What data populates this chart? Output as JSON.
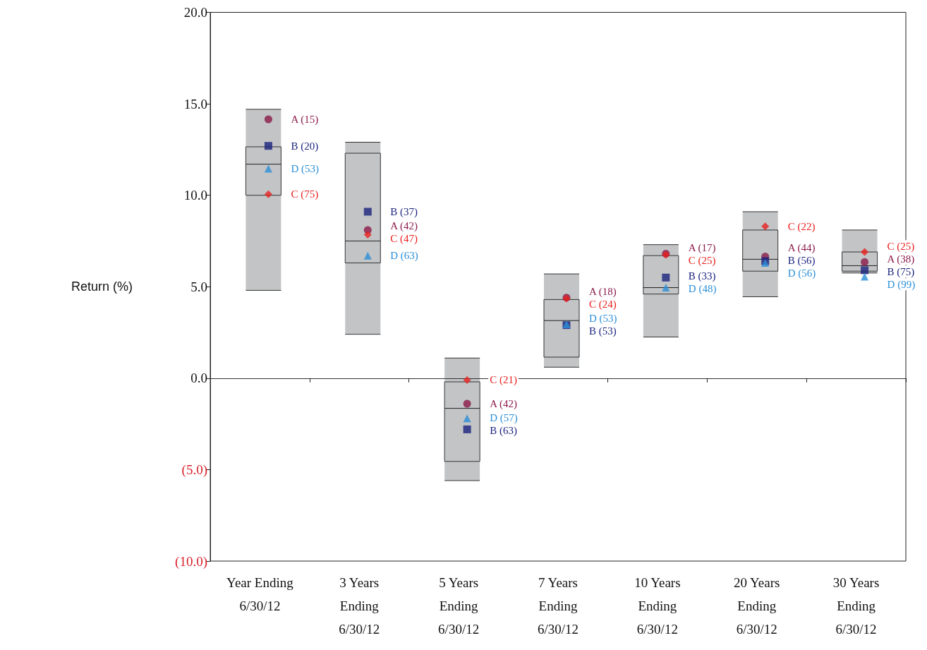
{
  "chart_data": {
    "type": "box",
    "ylabel": "Return (%)",
    "color": "#c2c4c6",
    "categories": [
      "Year Ending\n6/30/12",
      "3 Years\nEnding\n6/30/12",
      "5 Years\nEnding\n6/30/12",
      "7 Years\nEnding\n6/30/12",
      "10 Years\nEnding\n6/30/12",
      "20 Years\nEnding\n6/30/12",
      "30 Years\nEnding\n6/30/12"
    ],
    "boxes": [
      {
        "low": 4.8,
        "q1": 10.0,
        "median": 11.7,
        "q3": 12.65,
        "high": 14.7
      },
      {
        "low": 2.4,
        "q1": 6.3,
        "median": 7.5,
        "q3": 12.3,
        "high": 12.9
      },
      {
        "low": -5.6,
        "q1": -4.55,
        "median": -1.65,
        "q3": -0.2,
        "high": 1.1
      },
      {
        "low": 0.6,
        "q1": 1.15,
        "median": 3.15,
        "q3": 4.3,
        "high": 5.7
      },
      {
        "low": 2.25,
        "q1": 4.6,
        "median": 4.95,
        "q3": 6.7,
        "high": 7.3
      },
      {
        "low": 4.45,
        "q1": 5.85,
        "median": 6.5,
        "q3": 8.1,
        "high": 9.1
      },
      {
        "low": 5.75,
        "q1": 5.85,
        "median": 6.15,
        "q3": 6.9,
        "high": 8.1
      }
    ],
    "series": [
      {
        "type": "scatter",
        "marker": "circle",
        "color": "#8b1a4a",
        "values": [
          14.15,
          8.1,
          -1.4,
          4.4,
          6.8,
          6.65,
          6.35
        ]
      },
      {
        "type": "scatter",
        "marker": "square",
        "color": "#1a237e",
        "values": [
          12.7,
          9.1,
          -2.8,
          2.9,
          5.5,
          6.4,
          5.9
        ]
      },
      {
        "type": "scatter",
        "marker": "diamond",
        "color": "#e8201e",
        "values": [
          10.05,
          7.85,
          -0.1,
          4.35,
          6.75,
          8.3,
          6.9
        ]
      },
      {
        "type": "scatter",
        "marker": "triangle",
        "color": "#2a8fd8",
        "values": [
          11.45,
          6.7,
          -2.2,
          2.95,
          4.95,
          6.3,
          5.55
        ]
      }
    ],
    "annotations": [
      "A (15)",
      "B (20)",
      "C (75)",
      "D (53)",
      "A (42)",
      "B (37)",
      "C (47)",
      "D (63)",
      "A (42)",
      "B (63)",
      "C (21)",
      "D (57)",
      "A (18)",
      "B (53)",
      "C (24)",
      "D (53)",
      "A (17)",
      "B (33)",
      "C (25)",
      "D (48)",
      "A (44)",
      "B (56)",
      "C (22)",
      "D (56)",
      "A (38)",
      "B (75)",
      "C (25)",
      "D (99)"
    ],
    "ylim": [
      -10,
      20
    ],
    "yticks": [
      {
        "value": -10,
        "label": "(10.0)"
      },
      {
        "value": -5,
        "label": "(5.0)"
      },
      {
        "value": 0,
        "label": "0.0"
      },
      {
        "value": 5,
        "label": "5.0"
      },
      {
        "value": 10,
        "label": "10.0"
      },
      {
        "value": 15,
        "label": "15.0"
      },
      {
        "value": 20,
        "label": "20.0"
      }
    ],
    "ref_lines": [
      {
        "axis": "y",
        "value": 0,
        "color": "#333333"
      }
    ],
    "grid": false
  }
}
